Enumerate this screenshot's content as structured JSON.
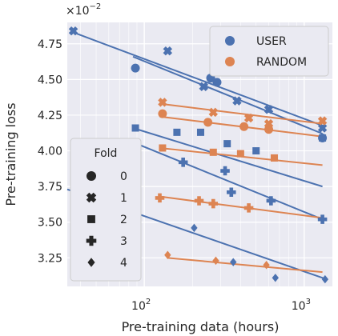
{
  "chart_data": {
    "type": "scatter",
    "xlabel": "Pre-training data (hours)",
    "ylabel": "Pre-training loss",
    "y_exponent_label": "×10",
    "y_exponent_power": "−2",
    "x_scale": "log",
    "xlim": [
      33,
      1500
    ],
    "ylim": [
      3.05,
      4.9
    ],
    "xticks": [
      {
        "value": 100,
        "base": "10",
        "exp": "2"
      },
      {
        "value": 1000,
        "base": "10",
        "exp": "3"
      }
    ],
    "yticks": [
      3.25,
      3.5,
      3.75,
      4.0,
      4.25,
      4.5,
      4.75
    ],
    "ytick_labels": [
      "3.25",
      "3.50",
      "3.75",
      "4.00",
      "4.25",
      "4.50",
      "4.75"
    ],
    "grid": true,
    "background": "#eaeaf2",
    "legend_series": {
      "position": "top-right",
      "entries": [
        {
          "name": "USER",
          "color": "#4c72b0"
        },
        {
          "name": "RANDOM",
          "color": "#dd8452"
        }
      ]
    },
    "legend_folds": {
      "title": "Fold",
      "position": "middle-left",
      "entries": [
        {
          "label": "0",
          "marker": "circle"
        },
        {
          "label": "1",
          "marker": "x"
        },
        {
          "label": "2",
          "marker": "square"
        },
        {
          "label": "3",
          "marker": "plus"
        },
        {
          "label": "4",
          "marker": "diamond"
        }
      ]
    },
    "series": [
      {
        "name": "USER",
        "color": "#4c72b0",
        "folds": [
          {
            "fold": 0,
            "marker": "circle",
            "points": [
              [
                88,
                4.58
              ],
              [
                260,
                4.51
              ],
              [
                285,
                4.48
              ],
              [
                1300,
                4.09
              ]
            ],
            "fit": [
              [
                85,
                4.66
              ],
              [
                1300,
                4.12
              ]
            ]
          },
          {
            "fold": 1,
            "marker": "x",
            "points": [
              [
                36,
                4.84
              ],
              [
                140,
                4.7
              ],
              [
                235,
                4.45
              ],
              [
                380,
                4.35
              ],
              [
                600,
                4.29
              ],
              [
                1300,
                4.16
              ]
            ],
            "fit": [
              [
                36,
                4.83
              ],
              [
                1350,
                4.17
              ]
            ]
          },
          {
            "fold": 2,
            "marker": "square",
            "points": [
              [
                88,
                4.16
              ],
              [
                160,
                4.13
              ],
              [
                225,
                4.13
              ],
              [
                330,
                4.05
              ],
              [
                500,
                4.0
              ],
              [
                1300,
                4.09
              ]
            ],
            "fit": [
              [
                85,
                4.16
              ],
              [
                1300,
                3.75
              ]
            ]
          },
          {
            "fold": 3,
            "marker": "plus",
            "points": [
              [
                88,
                4.03
              ],
              [
                175,
                3.92
              ],
              [
                320,
                3.86
              ],
              [
                350,
                3.71
              ],
              [
                620,
                3.65
              ],
              [
                1300,
                3.52
              ]
            ],
            "fit": [
              [
                85,
                4.06
              ],
              [
                1300,
                3.52
              ]
            ]
          },
          {
            "fold": 4,
            "marker": "diamond",
            "points": [
              [
                205,
                3.46
              ],
              [
                360,
                3.22
              ],
              [
                660,
                3.11
              ],
              [
                1350,
                3.1
              ]
            ],
            "fit": [
              [
                33,
                3.73
              ],
              [
                1380,
                3.1
              ]
            ]
          }
        ]
      },
      {
        "name": "RANDOM",
        "color": "#dd8452",
        "folds": [
          {
            "fold": 0,
            "marker": "circle",
            "points": [
              [
                130,
                4.26
              ],
              [
                250,
                4.2
              ],
              [
                420,
                4.17
              ],
              [
                600,
                4.15
              ]
            ],
            "fit": [
              [
                125,
                4.24
              ],
              [
                1300,
                4.1
              ]
            ]
          },
          {
            "fold": 1,
            "marker": "x",
            "points": [
              [
                130,
                4.34
              ],
              [
                270,
                4.27
              ],
              [
                450,
                4.23
              ],
              [
                600,
                4.19
              ],
              [
                1300,
                4.21
              ]
            ],
            "fit": [
              [
                125,
                4.33
              ],
              [
                1300,
                4.19
              ]
            ]
          },
          {
            "fold": 2,
            "marker": "square",
            "points": [
              [
                130,
                4.02
              ],
              [
                270,
                3.99
              ],
              [
                400,
                3.98
              ],
              [
                650,
                3.95
              ]
            ],
            "fit": [
              [
                125,
                4.02
              ],
              [
                1300,
                3.9
              ]
            ]
          },
          {
            "fold": 3,
            "marker": "plus",
            "points": [
              [
                125,
                3.67
              ],
              [
                220,
                3.65
              ],
              [
                270,
                3.63
              ],
              [
                450,
                3.6
              ]
            ],
            "fit": [
              [
                125,
                3.68
              ],
              [
                1300,
                3.53
              ]
            ]
          },
          {
            "fold": 4,
            "marker": "diamond",
            "points": [
              [
                140,
                3.27
              ],
              [
                280,
                3.23
              ],
              [
                580,
                3.2
              ]
            ],
            "fit": [
              [
                140,
                3.25
              ],
              [
                1300,
                3.15
              ]
            ]
          }
        ]
      }
    ]
  }
}
